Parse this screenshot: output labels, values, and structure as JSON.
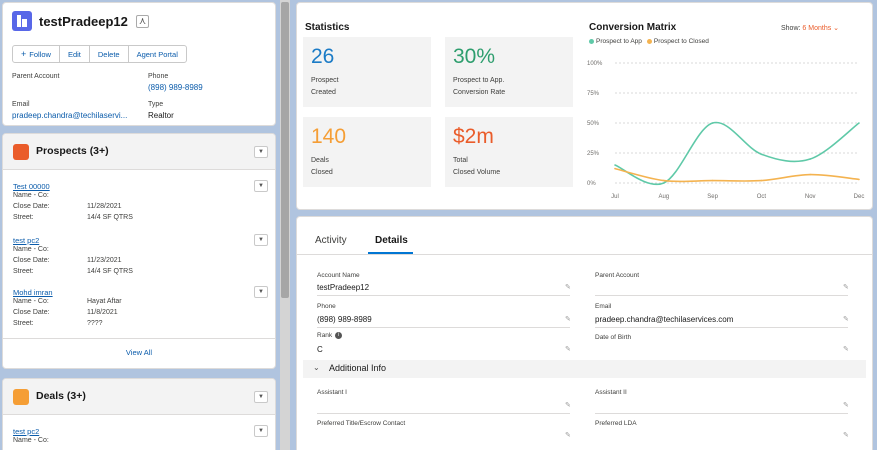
{
  "account": {
    "title": "testPradeep12",
    "buttons": {
      "follow": "Follow",
      "edit": "Edit",
      "delete": "Delete",
      "agent_portal": "Agent Portal"
    },
    "fields": {
      "parent_account_label": "Parent Account",
      "phone_label": "Phone",
      "phone_value": "(898) 989-8989",
      "email_label": "Email",
      "email_value": "pradeep.chandra@techilaservi...",
      "type_label": "Type",
      "type_value": "Realtor"
    }
  },
  "prospects": {
    "title": "Prospects (3+)",
    "records": [
      {
        "name": "Test 00000",
        "rows": [
          {
            "label": "Name - Co:",
            "value": ""
          },
          {
            "label": "Close Date:",
            "value": "11/28/2021"
          },
          {
            "label": "Street:",
            "value": "14/4 SF QTRS"
          }
        ]
      },
      {
        "name": "test pc2",
        "rows": [
          {
            "label": "Name - Co:",
            "value": ""
          },
          {
            "label": "Close Date:",
            "value": "11/23/2021"
          },
          {
            "label": "Street:",
            "value": "14/4 SF QTRS"
          }
        ]
      },
      {
        "name": "Mohd imran",
        "rows": [
          {
            "label": "Name - Co:",
            "value": "Hayat Aftar"
          },
          {
            "label": "Close Date:",
            "value": "11/8/2021"
          },
          {
            "label": "Street:",
            "value": "????"
          }
        ]
      }
    ],
    "view_all": "View All"
  },
  "deals": {
    "title": "Deals (3+)",
    "records": [
      {
        "name": "test pc2",
        "rows": [
          {
            "label": "Name - Co:",
            "value": ""
          }
        ]
      }
    ]
  },
  "statistics": {
    "title": "Statistics",
    "tiles": [
      {
        "value": "26",
        "line1": "Prospect",
        "line2": "Created",
        "color": "#1b7bc6"
      },
      {
        "value": "30%",
        "line1": "Prospect to App.",
        "line2": "Conversion Rate",
        "color": "#2e9e6e"
      },
      {
        "value": "140",
        "line1": "Deals",
        "line2": "Closed",
        "color": "#f59e35"
      },
      {
        "value": "$2m",
        "line1": "Total",
        "line2": "Closed Volume",
        "color": "#ea5c2a"
      }
    ]
  },
  "conversion_matrix": {
    "title": "Conversion Matrix",
    "show_label": "Show:",
    "show_value": "6 Months",
    "show_chevron": "chevron-down-icon"
  },
  "chart_data": {
    "type": "line",
    "title": "Conversion Matrix",
    "categories": [
      "Jul",
      "Aug",
      "Sep",
      "Oct",
      "Nov",
      "Dec"
    ],
    "series": [
      {
        "name": "Prospect to App",
        "color": "#5fc9a8",
        "values": [
          15,
          0,
          50,
          24,
          20,
          50
        ]
      },
      {
        "name": "Prospect to Closed",
        "color": "#f4b350",
        "values": [
          12,
          2,
          2,
          2,
          7,
          3
        ]
      }
    ],
    "y_ticks": [
      "100%",
      "75%",
      "50%",
      "25%",
      "0%"
    ],
    "ylim": [
      0,
      100
    ],
    "grid": true,
    "legend": "top-left"
  },
  "details": {
    "tabs": {
      "activity": "Activity",
      "details": "Details"
    },
    "fields": {
      "account_name_label": "Account Name",
      "account_name_value": "testPradeep12",
      "parent_account_label": "Parent Account",
      "phone_label": "Phone",
      "phone_value": "(898) 989-8989",
      "email_label": "Email",
      "email_value": "pradeep.chandra@techilaservices.com",
      "rank_label": "Rank",
      "rank_value": "C",
      "dob_label": "Date of Birth",
      "assistant1_label": "Assistant I",
      "assistant2_label": "Assistant II",
      "preferred_title_label": "Preferred Title/Escrow Contact",
      "preferred_lda_label": "Preferred LDA"
    },
    "section_title": "Additional Info"
  }
}
